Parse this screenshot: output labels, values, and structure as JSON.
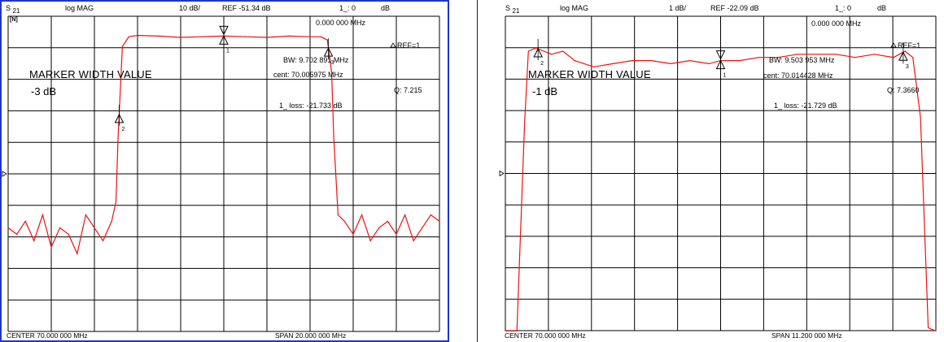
{
  "left": {
    "header": {
      "param_main": "S",
      "param_sub": "21",
      "format": "log MAG",
      "scale": "10 dB/",
      "ref": "REF -51.34 dB",
      "marker_hdr": "1_: 0",
      "marker_unit": "dB"
    },
    "corner_label": "[N]",
    "readouts": {
      "freq": "0.000 000 MHz",
      "ref_marker": "REF=1",
      "bw": "BW:   9.702 891 MHz",
      "cent": "cent:   70.005975 MHz",
      "q": "Q: 7.215",
      "loss": "1_ loss: -21.733 dB"
    },
    "marker_width_title": "MARKER WIDTH VALUE",
    "marker_width_db": "-3 dB",
    "footer": {
      "center": "CENTER  70.000 000 MHz",
      "span": "SPAN  20.000 000 MHz"
    }
  },
  "right": {
    "header": {
      "param_main": "S",
      "param_sub": "21",
      "format": "log MAG",
      "scale": "1 dB/",
      "ref": "REF -22.09 dB",
      "marker_hdr": "1_: 0",
      "marker_unit": "dB"
    },
    "readouts": {
      "freq": "0.000 000 MHz",
      "ref_marker": "REF=1",
      "bw": "BW:   9.503 953 MHz",
      "cent": "cent:   70.014428 MHz",
      "q": "Q: 7.3660",
      "loss": "1_ loss: -21.729 dB"
    },
    "marker_width_title": "MARKER WIDTH VALUE",
    "marker_width_db": "-1 dB",
    "footer": {
      "center": "CENTER  70.000 000 MHz",
      "span": "SPAN  11.200 000 MHz"
    }
  },
  "colors": {
    "trace": "#ee1111",
    "frame": "#2233cc",
    "grid": "#000000"
  },
  "chart_data": [
    {
      "type": "line",
      "title": "",
      "parameter": "S21",
      "format": "log MAG",
      "x_unit": "MHz",
      "xlim": [
        60.0,
        80.0
      ],
      "ylim": [
        -100,
        -51.34
      ],
      "ylabel": "",
      "xlabel": "",
      "grid": true,
      "series": [
        {
          "x": [
            60.0,
            60.4,
            60.8,
            61.2,
            61.6,
            62.0,
            62.4,
            62.8,
            63.2,
            63.6,
            64.0,
            64.4,
            64.8,
            65.0,
            65.1,
            65.3,
            65.6,
            66.0,
            67.0,
            68.0,
            69.0,
            70.0,
            71.0,
            72.0,
            73.0,
            74.0,
            74.5,
            74.8,
            75.0,
            75.1,
            75.3,
            75.6,
            76.0,
            76.4,
            76.8,
            77.2,
            77.6,
            78.0,
            78.4,
            78.8,
            79.2,
            79.6,
            80.0
          ],
          "y": [
            -84,
            -85,
            -83,
            -86,
            -82,
            -87,
            -84,
            -85,
            -88,
            -82,
            -84,
            -86,
            -83,
            -80,
            -70,
            -56,
            -54.5,
            -54.3,
            -54.4,
            -54.6,
            -54.5,
            -54.4,
            -54.5,
            -54.6,
            -54.4,
            -54.5,
            -54.5,
            -55,
            -60,
            -70,
            -82,
            -83,
            -85,
            -82,
            -86,
            -84,
            -83,
            -85,
            -82,
            -86,
            -84,
            -82,
            -83
          ]
        }
      ],
      "markers": [
        {
          "label": "1",
          "x": 70.0
        },
        {
          "label": "2",
          "x": 65.15
        },
        {
          "label": "3",
          "x": 74.85
        }
      ]
    },
    {
      "type": "line",
      "title": "",
      "parameter": "S21",
      "format": "log MAG",
      "x_unit": "MHz",
      "xlim": [
        64.4,
        75.6
      ],
      "ylim": [
        -32.09,
        -22.09
      ],
      "ylabel": "",
      "xlabel": "",
      "grid": true,
      "series": [
        {
          "x": [
            64.4,
            64.7,
            64.9,
            65.0,
            65.2,
            65.6,
            65.9,
            66.2,
            66.7,
            67.2,
            67.7,
            68.2,
            68.7,
            69.2,
            69.7,
            70.0,
            70.5,
            71.0,
            71.5,
            72.0,
            72.5,
            73.0,
            73.5,
            74.0,
            74.5,
            74.8,
            75.0,
            75.2,
            75.4,
            75.6
          ],
          "y": [
            -32.1,
            -32.1,
            -25.5,
            -23.2,
            -23.1,
            -23.3,
            -23.2,
            -23.5,
            -23.7,
            -23.6,
            -23.5,
            -23.5,
            -23.6,
            -23.5,
            -23.6,
            -23.5,
            -23.5,
            -23.4,
            -23.4,
            -23.3,
            -23.3,
            -23.3,
            -23.4,
            -23.3,
            -23.4,
            -23.2,
            -23.4,
            -25.3,
            -32.0,
            -32.1
          ]
        }
      ],
      "markers": [
        {
          "label": "1",
          "x": 70.0
        },
        {
          "label": "2",
          "x": 65.25
        },
        {
          "label": "3",
          "x": 74.75
        }
      ]
    }
  ]
}
